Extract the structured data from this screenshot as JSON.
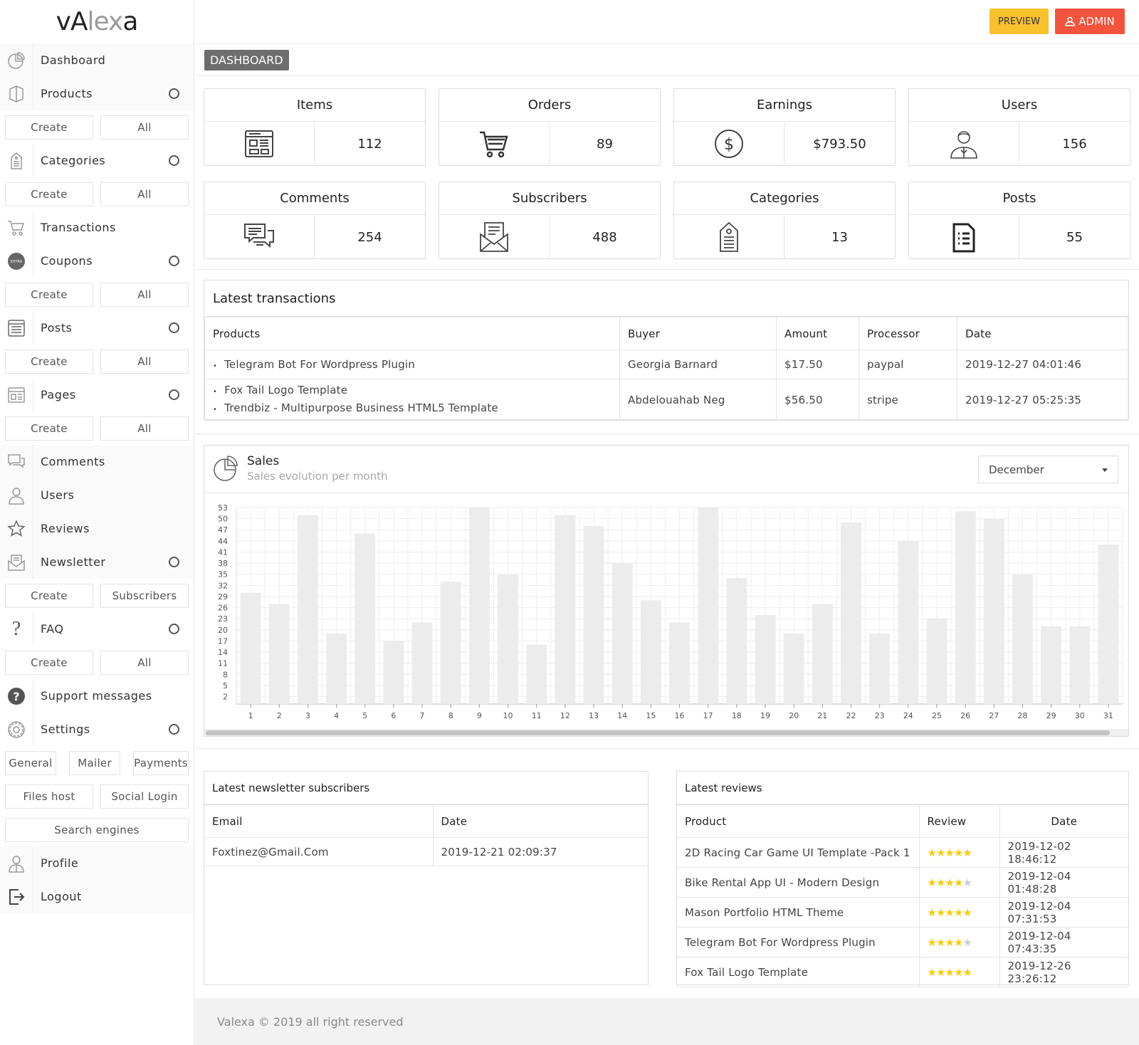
{
  "app": {
    "logo_left": "vA",
    "logo_mid": "lex",
    "logo_right": "a"
  },
  "topbar": {
    "preview_label": "PREVIEW",
    "admin_label": "ADMIN"
  },
  "sidebar": {
    "dashboard": "Dashboard",
    "products": "Products",
    "categories": "Categories",
    "transactions": "Transactions",
    "coupons": "Coupons",
    "posts": "Posts",
    "pages": "Pages",
    "comments": "Comments",
    "users": "Users",
    "reviews": "Reviews",
    "newsletter": "Newsletter",
    "faq": "FAQ",
    "support": "Support messages",
    "settings": "Settings",
    "profile": "Profile",
    "logout": "Logout",
    "create": "Create",
    "all": "All",
    "subscribers": "Subscribers",
    "general": "General",
    "mailer": "Mailer",
    "payments": "Payments",
    "files_host": "Files host",
    "social_login": "Social Login",
    "search_engines": "Search engines"
  },
  "page_title": "DASHBOARD",
  "stats": {
    "items": {
      "label": "Items",
      "value": "112"
    },
    "orders": {
      "label": "Orders",
      "value": "89"
    },
    "earnings": {
      "label": "Earnings",
      "value": "$793.50"
    },
    "users": {
      "label": "Users",
      "value": "156"
    },
    "comments": {
      "label": "Comments",
      "value": "254"
    },
    "subscribers": {
      "label": "Subscribers",
      "value": "488"
    },
    "categories": {
      "label": "Categories",
      "value": "13"
    },
    "posts": {
      "label": "Posts",
      "value": "55"
    }
  },
  "transactions": {
    "title": "Latest transactions",
    "headers": [
      "Products",
      "Buyer",
      "Amount",
      "Processor",
      "Date"
    ],
    "rows": [
      {
        "products": [
          "Telegram Bot For Wordpress Plugin"
        ],
        "buyer": "Georgia Barnard",
        "amount": "$17.50",
        "processor": "paypal",
        "date": "2019-12-27 04:01:46"
      },
      {
        "products": [
          "Fox Tail Logo Template",
          "Trendbiz - Multipurpose Business HTML5 Template"
        ],
        "buyer": "Abdelouahab Neg",
        "amount": "$56.50",
        "processor": "stripe",
        "date": "2019-12-27 05:25:35"
      }
    ]
  },
  "sales": {
    "title": "Sales",
    "subtitle": "Sales evolution per month",
    "month": "December"
  },
  "chart_data": {
    "type": "bar",
    "categories": [
      "1",
      "2",
      "3",
      "4",
      "5",
      "6",
      "7",
      "8",
      "9",
      "10",
      "11",
      "12",
      "13",
      "14",
      "15",
      "16",
      "17",
      "18",
      "19",
      "20",
      "21",
      "22",
      "23",
      "24",
      "25",
      "26",
      "27",
      "28",
      "29",
      "30",
      "31"
    ],
    "values": [
      30,
      27,
      51,
      19,
      46,
      17,
      22,
      33,
      53,
      35,
      16,
      51,
      48,
      38,
      28,
      22,
      53,
      34,
      24,
      19,
      27,
      49,
      19,
      44,
      23,
      52,
      50,
      35,
      21,
      21,
      43
    ],
    "yticks": [
      2,
      5,
      8,
      11,
      14,
      17,
      20,
      23,
      26,
      29,
      32,
      35,
      38,
      41,
      44,
      47,
      50,
      53
    ],
    "ylim": [
      0,
      53
    ],
    "grid": true,
    "bar_color": "#ececec"
  },
  "newsletter": {
    "title": "Latest newsletter subscribers",
    "headers": [
      "Email",
      "Date"
    ],
    "rows": [
      {
        "email": "Foxtinez@Gmail.Com",
        "date": "2019-12-21 02:09:37"
      }
    ]
  },
  "reviews": {
    "title": "Latest reviews",
    "headers": [
      "Product",
      "Review",
      "Date"
    ],
    "rows": [
      {
        "product": "2D Racing Car Game UI Template -Pack 1",
        "stars": 5,
        "date": "2019-12-02 18:46:12"
      },
      {
        "product": "Bike Rental App UI - Modern Design",
        "stars": 4,
        "date": "2019-12-04 01:48:28"
      },
      {
        "product": "Mason Portfolio HTML Theme",
        "stars": 5,
        "date": "2019-12-04 07:31:53"
      },
      {
        "product": "Telegram Bot For Wordpress Plugin",
        "stars": 4,
        "date": "2019-12-04 07:43:35"
      },
      {
        "product": "Fox Tail Logo Template",
        "stars": 5,
        "date": "2019-12-26 23:26:12"
      }
    ]
  },
  "footer": "Valexa © 2019 all right reserved"
}
